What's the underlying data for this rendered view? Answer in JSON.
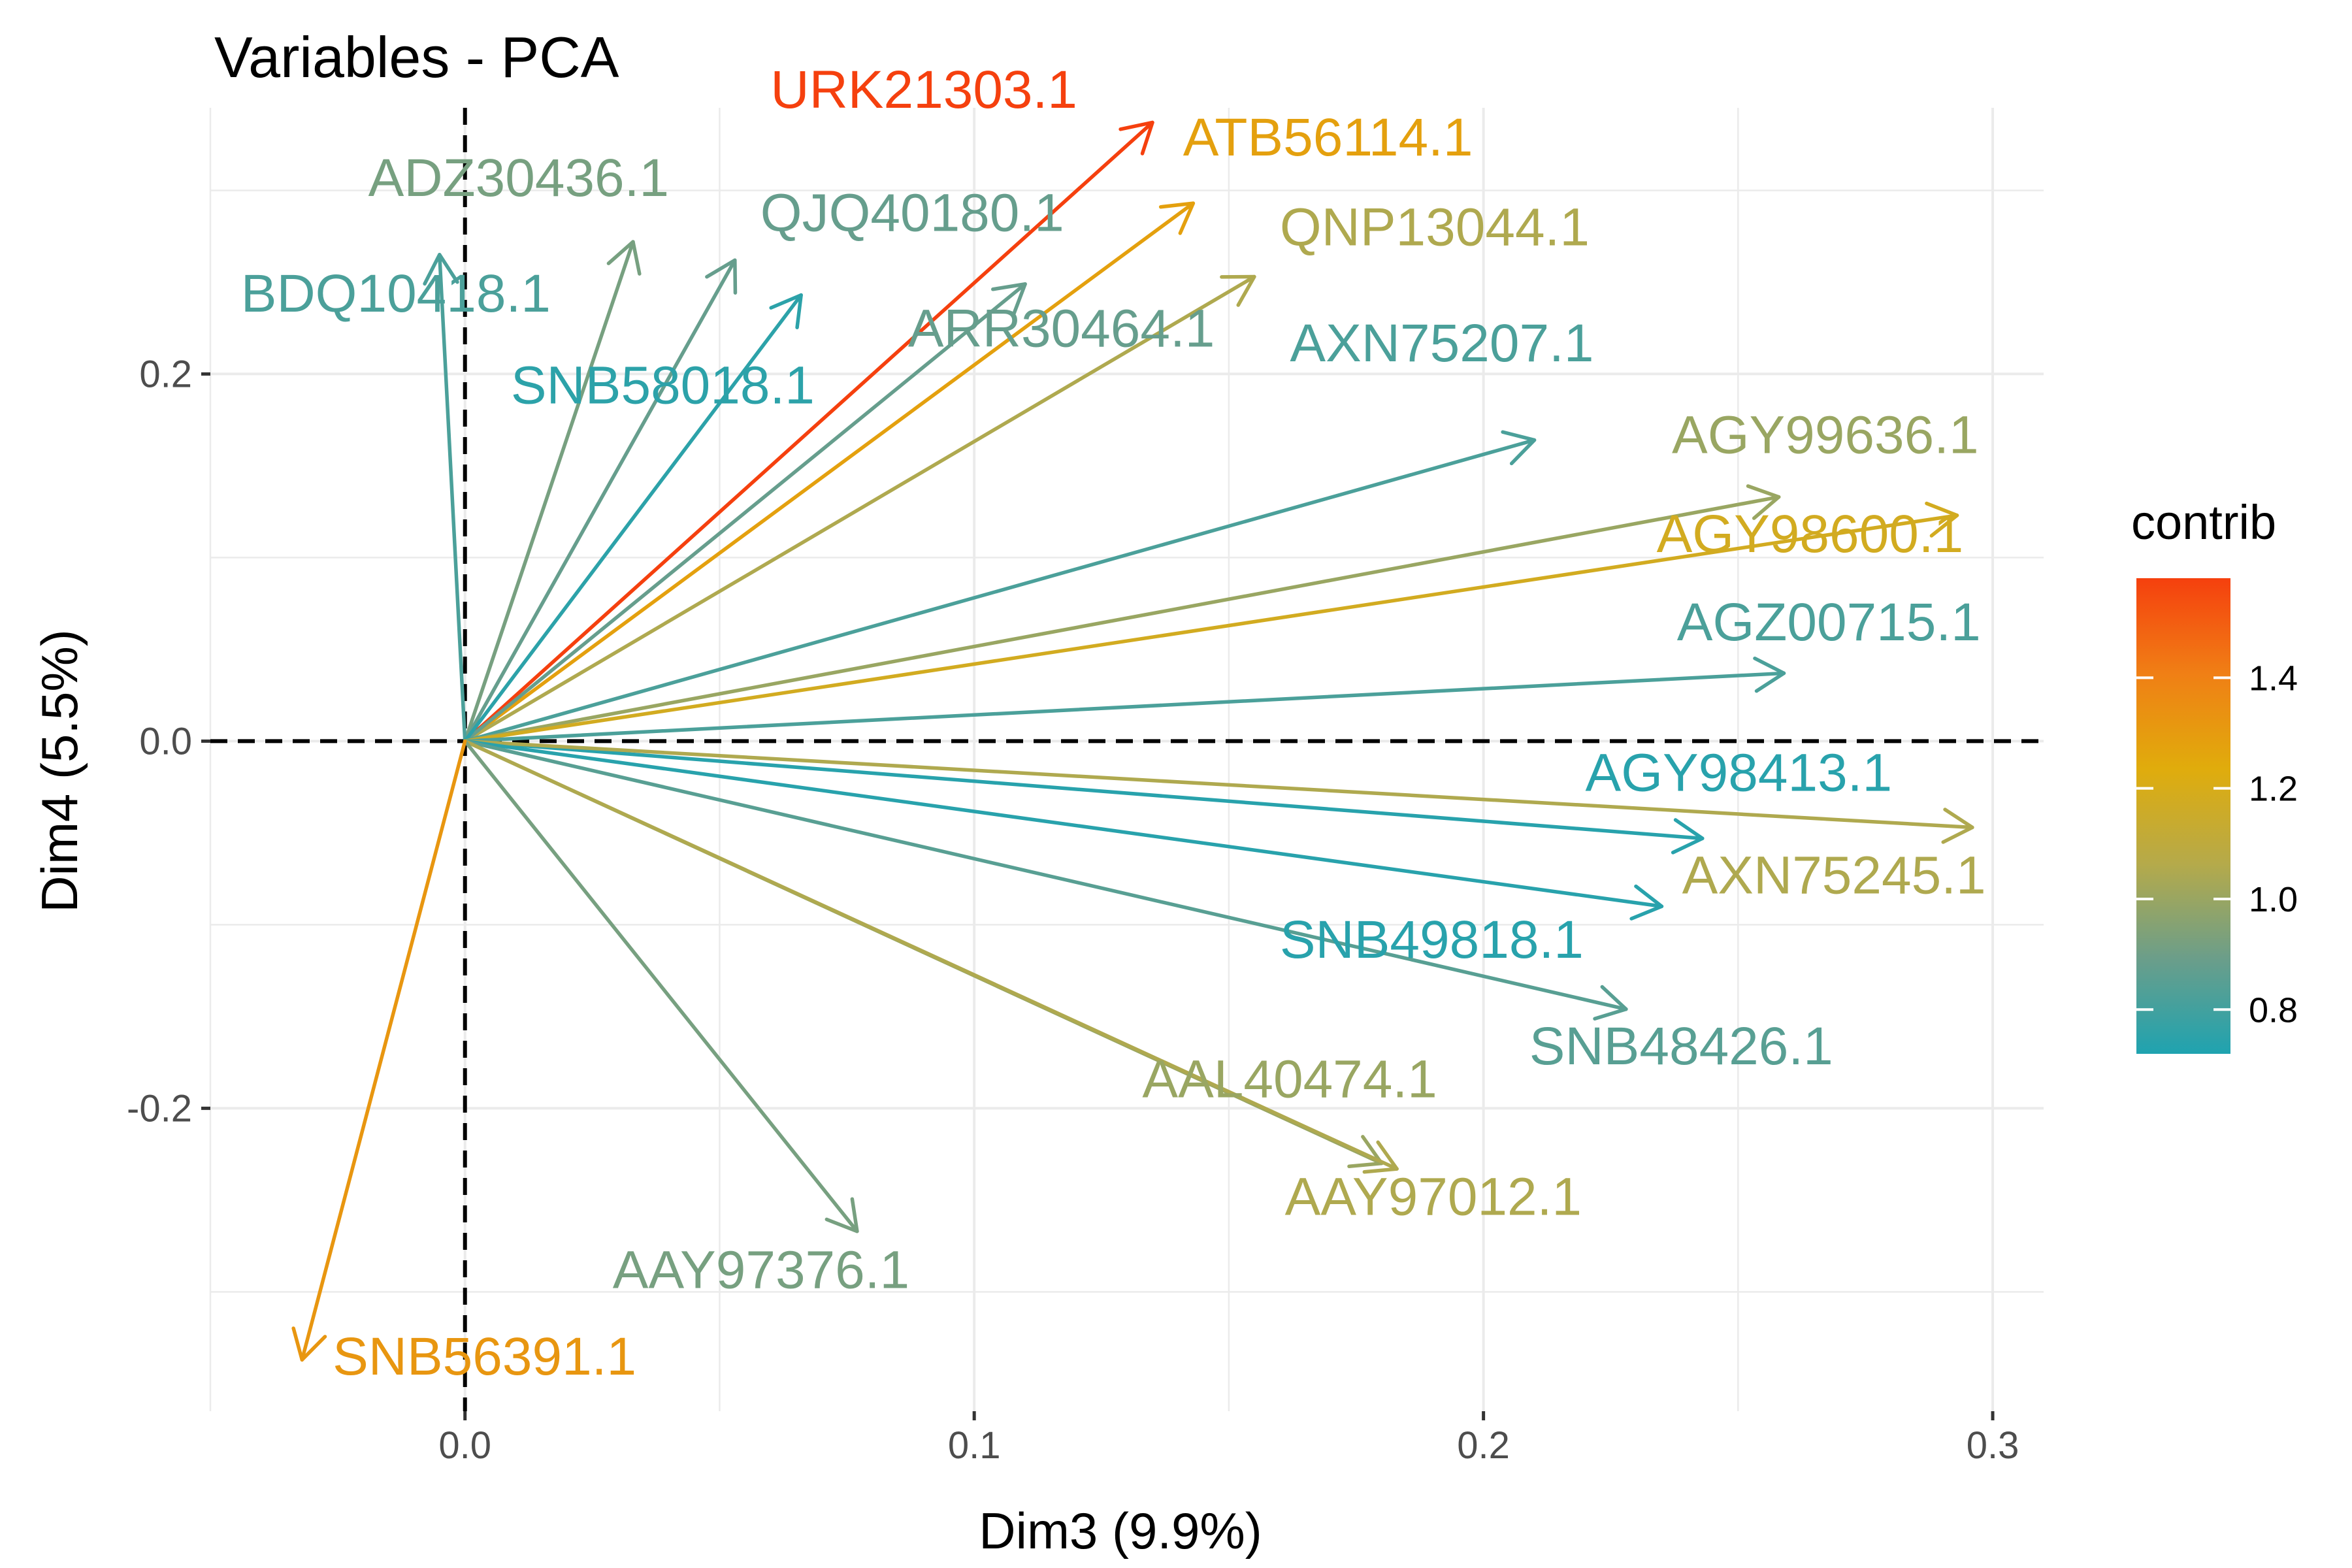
{
  "chart_data": {
    "type": "scatter",
    "title": "Variables - PCA",
    "xlabel": "Dim3 (9.9%)",
    "ylabel": "Dim4 (5.5%)",
    "xlim": [
      -0.05,
      0.31
    ],
    "ylim": [
      -0.365,
      0.345
    ],
    "x_ticks": [
      0.0,
      0.1,
      0.2,
      0.3
    ],
    "x_tick_labels": [
      "0.0",
      "0.1",
      "0.2",
      "0.3"
    ],
    "y_ticks": [
      -0.2,
      0.0,
      0.2
    ],
    "y_tick_labels": [
      "-0.2",
      "0.0",
      "0.2"
    ],
    "grid": true,
    "reference_lines": {
      "x": 0,
      "y": 0,
      "style": "dashed"
    },
    "legend": {
      "title": "contrib",
      "position": "right",
      "range": [
        0.72,
        1.58
      ],
      "ticks": [
        0.8,
        1.0,
        1.2,
        1.4
      ],
      "tick_labels": [
        "0.8",
        "1.0",
        "1.2",
        "1.4"
      ],
      "colors": [
        "#1fa3b0",
        "#6b9e8a",
        "#b5aa4a",
        "#e0ac0c",
        "#f07f15",
        "#f5400e"
      ]
    },
    "series": [
      {
        "name": "URK21303.1",
        "x": 0.135,
        "y": 0.337,
        "contrib": 1.58,
        "label_pos": [
          0.06,
          0.345
        ]
      },
      {
        "name": "ATB56114.1",
        "x": 0.143,
        "y": 0.293,
        "contrib": 1.28,
        "label_pos": [
          0.141,
          0.319
        ]
      },
      {
        "name": "ADZ30436.1",
        "x": 0.033,
        "y": 0.272,
        "contrib": 0.92,
        "label_pos": [
          -0.019,
          0.297
        ]
      },
      {
        "name": "QJQ40180.1",
        "x": 0.053,
        "y": 0.262,
        "contrib": 0.88,
        "label_pos": [
          0.058,
          0.278
        ]
      },
      {
        "name": "QNP13044.1",
        "x": 0.155,
        "y": 0.253,
        "contrib": 1.05,
        "label_pos": [
          0.16,
          0.27
        ]
      },
      {
        "name": "BDQ10418.1",
        "x": -0.005,
        "y": 0.265,
        "contrib": 0.82,
        "label_pos": [
          -0.044,
          0.234
        ]
      },
      {
        "name": "ARR30464.1",
        "x": 0.11,
        "y": 0.249,
        "contrib": 0.88,
        "label_pos": [
          0.087,
          0.215
        ]
      },
      {
        "name": "SNB58018.1",
        "x": 0.066,
        "y": 0.243,
        "contrib": 0.75,
        "label_pos": [
          0.009,
          0.184
        ]
      },
      {
        "name": "AXN75207.1",
        "x": 0.21,
        "y": 0.164,
        "contrib": 0.82,
        "label_pos": [
          0.162,
          0.207
        ]
      },
      {
        "name": "AGY99636.1",
        "x": 0.258,
        "y": 0.133,
        "contrib": 1.0,
        "label_pos": [
          0.237,
          0.157
        ]
      },
      {
        "name": "AGY98600.1",
        "x": 0.293,
        "y": 0.123,
        "contrib": 1.18,
        "label_pos": [
          0.234,
          0.103
        ]
      },
      {
        "name": "AGZ00715.1",
        "x": 0.259,
        "y": 0.037,
        "contrib": 0.82,
        "label_pos": [
          0.238,
          0.055
        ]
      },
      {
        "name": "AGY98413.1",
        "x": 0.243,
        "y": -0.053,
        "contrib": 0.74,
        "label_pos": [
          0.22,
          -0.027
        ]
      },
      {
        "name": "AXN75245.1",
        "x": 0.296,
        "y": -0.047,
        "contrib": 1.05,
        "label_pos": [
          0.239,
          -0.083
        ]
      },
      {
        "name": "SNB49818.1",
        "x": 0.235,
        "y": -0.09,
        "contrib": 0.74,
        "label_pos": [
          0.16,
          -0.118
        ]
      },
      {
        "name": "SNB48426.1",
        "x": 0.228,
        "y": -0.146,
        "contrib": 0.85,
        "label_pos": [
          0.209,
          -0.176
        ]
      },
      {
        "name": "AAL40474.1",
        "x": 0.18,
        "y": -0.23,
        "contrib": 1.0,
        "label_pos": [
          0.133,
          -0.194
        ]
      },
      {
        "name": "AAY97012.1",
        "x": 0.183,
        "y": -0.233,
        "contrib": 1.05,
        "label_pos": [
          0.161,
          -0.258
        ]
      },
      {
        "name": "AAY97376.1",
        "x": 0.077,
        "y": -0.267,
        "contrib": 0.92,
        "label_pos": [
          0.029,
          -0.298
        ]
      },
      {
        "name": "SNB56391.1",
        "x": -0.032,
        "y": -0.337,
        "contrib": 1.32,
        "label_pos": [
          -0.026,
          -0.345
        ]
      }
    ]
  }
}
